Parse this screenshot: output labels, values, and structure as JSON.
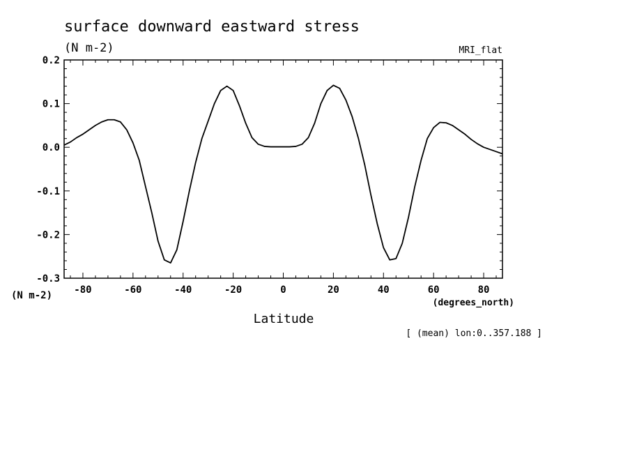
{
  "chart_data": {
    "type": "line",
    "title": "surface downward eastward stress",
    "subtitle": "(N m-2)",
    "model_label": "MRI_flat",
    "xlabel": "Latitude",
    "x_unit": "(degrees_north)",
    "y_unit": "(N m-2)",
    "footnote": "[ (mean) lon:0..357.188 ]",
    "xlim": [
      -87.5,
      87.5
    ],
    "ylim": [
      -0.3,
      0.2
    ],
    "x_ticks": [
      -80,
      -60,
      -40,
      -20,
      0,
      20,
      40,
      60,
      80
    ],
    "x_tick_labels": [
      "-80",
      "-60",
      "-40",
      "-20",
      "0",
      "20",
      "40",
      "60",
      "80"
    ],
    "y_ticks": [
      0.2,
      0.1,
      0.0,
      -0.1,
      -0.2,
      -0.3
    ],
    "y_tick_labels": [
      "0.2",
      "0.1",
      "0.0",
      "-0.1",
      "-0.2",
      "-0.3"
    ],
    "grid": false,
    "series": [
      {
        "x": [
          -87.5,
          -85,
          -82.5,
          -80,
          -77.5,
          -75,
          -72.5,
          -70,
          -67.5,
          -65,
          -62.5,
          -60,
          -57.5,
          -55,
          -52.5,
          -50,
          -47.5,
          -45,
          -42.5,
          -40,
          -37.5,
          -35,
          -32.5,
          -30,
          -27.5,
          -25,
          -22.5,
          -20,
          -17.5,
          -15,
          -12.5,
          -10,
          -7.5,
          -5,
          -2.5,
          0,
          2.5,
          5,
          7.5,
          10,
          12.5,
          15,
          17.5,
          20,
          22.5,
          25,
          27.5,
          30,
          32.5,
          35,
          37.5,
          40,
          42.5,
          45,
          47.5,
          50,
          52.5,
          55,
          57.5,
          60,
          62.5,
          65,
          67.5,
          70,
          72.5,
          75,
          77.5,
          80,
          82.5,
          85,
          87.5
        ],
        "y": [
          0.005,
          0.012,
          0.022,
          0.03,
          0.04,
          0.05,
          0.058,
          0.063,
          0.063,
          0.058,
          0.04,
          0.01,
          -0.03,
          -0.09,
          -0.15,
          -0.215,
          -0.258,
          -0.265,
          -0.235,
          -0.17,
          -0.1,
          -0.035,
          0.02,
          0.06,
          0.1,
          0.13,
          0.14,
          0.13,
          0.095,
          0.055,
          0.022,
          0.007,
          0.002,
          0.001,
          0.001,
          0.001,
          0.001,
          0.002,
          0.007,
          0.022,
          0.055,
          0.1,
          0.13,
          0.142,
          0.135,
          0.108,
          0.07,
          0.02,
          -0.04,
          -0.11,
          -0.175,
          -0.23,
          -0.258,
          -0.255,
          -0.22,
          -0.16,
          -0.09,
          -0.03,
          0.02,
          0.045,
          0.057,
          0.056,
          0.05,
          0.04,
          0.03,
          0.018,
          0.008,
          0.0,
          -0.005,
          -0.01,
          -0.015
        ]
      }
    ]
  }
}
